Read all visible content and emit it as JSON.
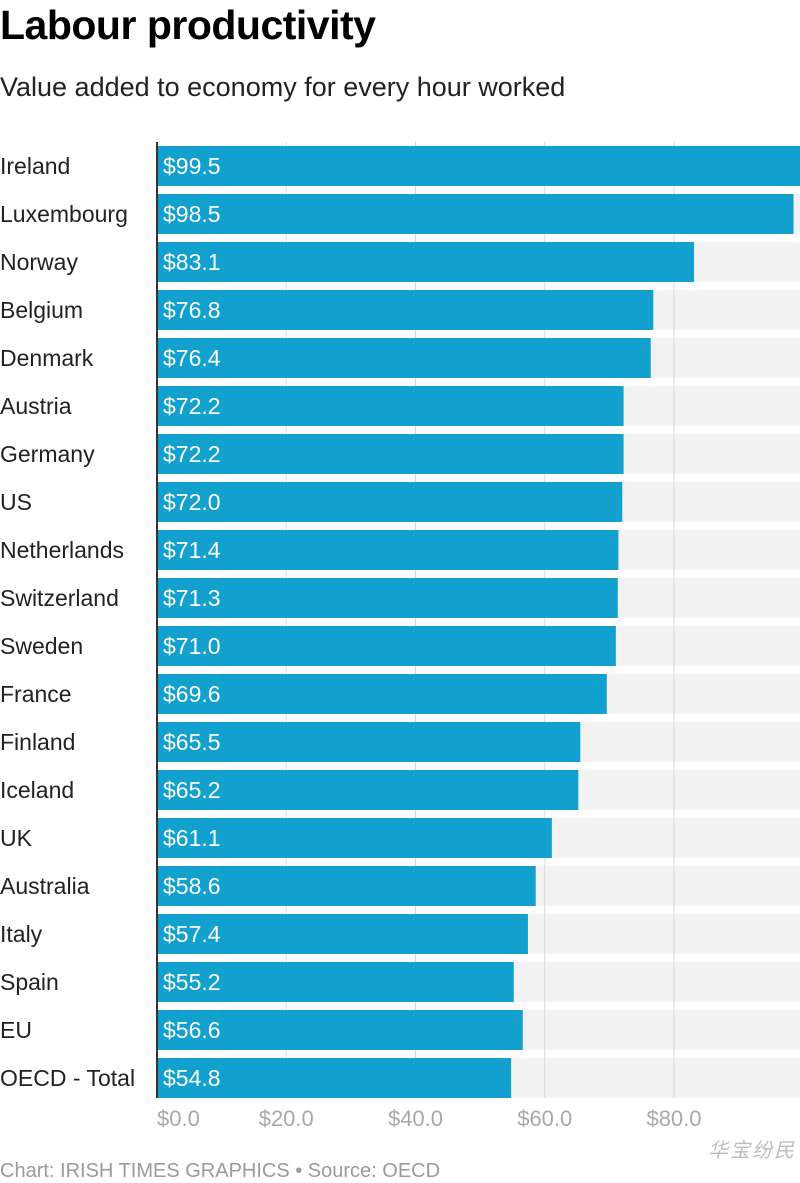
{
  "header": {
    "title": "Labour productivity",
    "subtitle": "Value added to economy for every hour worked"
  },
  "footer": {
    "credit": "Chart: IRISH TIMES GRAPHICS • Source: OECD"
  },
  "watermark": "华宝纷民",
  "colors": {
    "bar": "#12a0cf",
    "track": "#f2f2f2",
    "axis_line": "#333333",
    "grid": "#d9d9d9",
    "tick_text": "#a8a8a8"
  },
  "chart_data": {
    "type": "bar",
    "orientation": "horizontal",
    "title": "Labour productivity",
    "subtitle": "Value added to economy for every hour worked",
    "categories": [
      "Ireland",
      "Luxembourg",
      "Norway",
      "Belgium",
      "Denmark",
      "Austria",
      "Germany",
      "US",
      "Netherlands",
      "Switzerland",
      "Sweden",
      "France",
      "Finland",
      "Iceland",
      "UK",
      "Australia",
      "Italy",
      "Spain",
      "EU",
      "OECD - Total"
    ],
    "values": [
      99.5,
      98.5,
      83.1,
      76.8,
      76.4,
      72.2,
      72.2,
      72.0,
      71.4,
      71.3,
      71.0,
      69.6,
      65.5,
      65.2,
      61.1,
      58.6,
      57.4,
      55.2,
      56.6,
      54.8
    ],
    "value_labels": [
      "$99.5",
      "$98.5",
      "$83.1",
      "$76.8",
      "$76.4",
      "$72.2",
      "$72.2",
      "$72.0",
      "$71.4",
      "$71.3",
      "$71.0",
      "$69.6",
      "$65.5",
      "$65.2",
      "$61.1",
      "$58.6",
      "$57.4",
      "$55.2",
      "$56.6",
      "$54.8"
    ],
    "xlim": [
      0,
      99.5
    ],
    "x_ticks": [
      0,
      20,
      40,
      60,
      80
    ],
    "x_tick_labels": [
      "$0.0",
      "$20.0",
      "$40.0",
      "$60.0",
      "$80.0"
    ],
    "grid": true,
    "legend": "none"
  }
}
